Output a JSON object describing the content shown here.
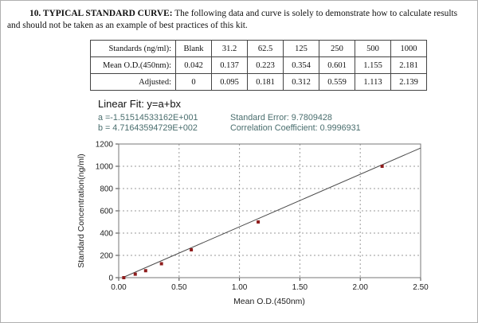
{
  "intro": {
    "title_bold": "10. TYPICAL STANDARD CURVE:",
    "body": " The following data and curve is solely to demonstrate how to calculate results and should not be taken as an example of best practices of this kit."
  },
  "table": {
    "rows": [
      {
        "label": "Standards (ng/ml):",
        "values": [
          "Blank",
          "31.2",
          "62.5",
          "125",
          "250",
          "500",
          "1000"
        ]
      },
      {
        "label": "Mean O.D.(450nm):",
        "values": [
          "0.042",
          "0.137",
          "0.223",
          "0.354",
          "0.601",
          "1.155",
          "2.181"
        ]
      },
      {
        "label": "Adjusted:",
        "values": [
          "0",
          "0.095",
          "0.181",
          "0.312",
          "0.559",
          "1.113",
          "2.139"
        ]
      }
    ]
  },
  "fit": {
    "title": "Linear Fit: y=a+bx",
    "a_line": "a =-1.51514533162E+001",
    "b_line": "b = 4.71643594729E+002",
    "standard_error": "Standard Error: 9.7809428",
    "correlation": "Correlation Coefficient: 0.9996931"
  },
  "chart_data": {
    "type": "scatter",
    "title": "",
    "xlabel": "Mean O.D.(450nm)",
    "ylabel": "Standard Concentration(ng/ml)",
    "x": [
      0.042,
      0.137,
      0.223,
      0.354,
      0.601,
      1.155,
      2.181
    ],
    "y": [
      0,
      31.2,
      62.5,
      125,
      250,
      500,
      1000
    ],
    "fit_line": {
      "a": -15.1514533162,
      "b": 471.643594729
    },
    "xlim": [
      0,
      2.5
    ],
    "ylim": [
      0,
      1200
    ],
    "x_ticks": [
      "0.00",
      "0.50",
      "1.00",
      "1.50",
      "2.00",
      "2.50"
    ],
    "y_ticks": [
      "0",
      "200",
      "400",
      "600",
      "800",
      "1000",
      "1200"
    ],
    "grid": "dashed",
    "point_color": "#8f1d1d",
    "line_color": "#4a4a4a",
    "grid_color": "#9a9a9a",
    "border_color": "#777777"
  }
}
